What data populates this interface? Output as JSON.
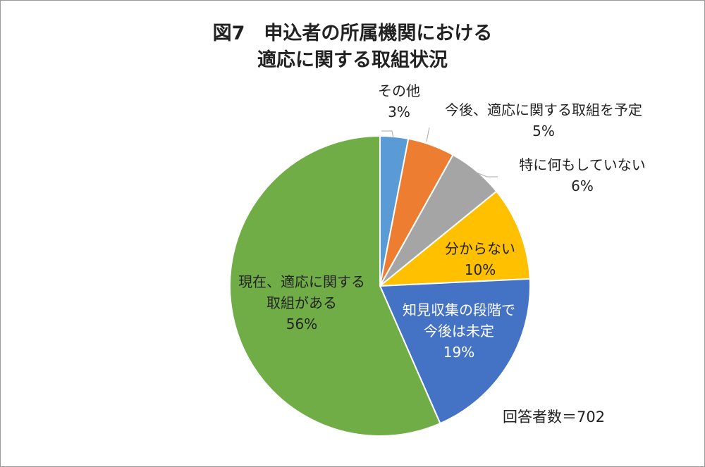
{
  "chart_data": {
    "type": "pie",
    "title": [
      "図7　申込者の所属機関における",
      "適応に関する取組状況"
    ],
    "categories": [
      "その他",
      "今後、適応に関する取組を予定",
      "特に何もしていない",
      "分からない",
      "知見収集の段階で今後は未定",
      "現在、適応に関する取組がある"
    ],
    "values": [
      3,
      5,
      6,
      10,
      19,
      56
    ],
    "value_labels": [
      "3%",
      "5%",
      "6%",
      "10%",
      "19%",
      "56%"
    ],
    "colors": [
      "#5b9bd5",
      "#ed7d31",
      "#a5a5a5",
      "#ffc000",
      "#4472c4",
      "#70ad47"
    ],
    "annotation": "回答者数＝702"
  }
}
